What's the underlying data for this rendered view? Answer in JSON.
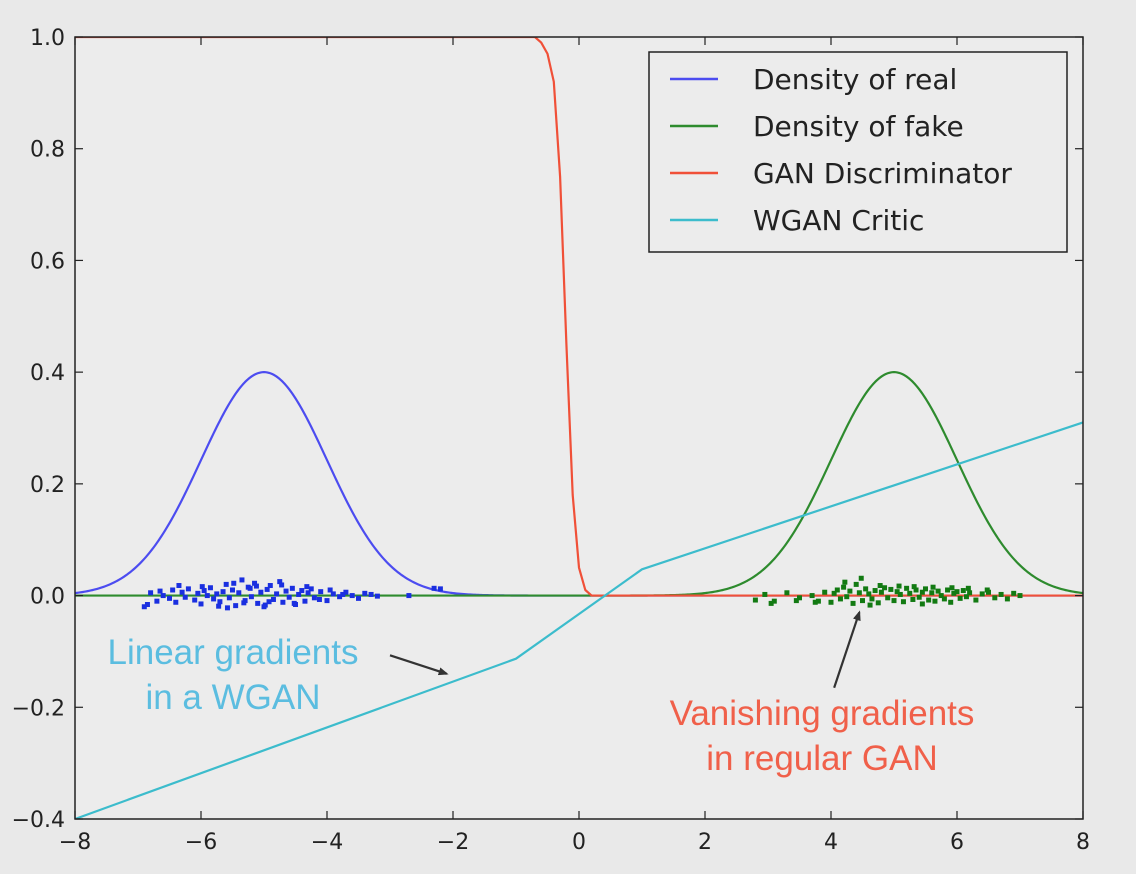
{
  "chart_data": {
    "type": "line",
    "title": "",
    "xlabel": "",
    "ylabel": "",
    "xlim": [
      -8,
      8
    ],
    "ylim": [
      -0.4,
      1.0
    ],
    "x_ticks": [
      -8,
      -6,
      -4,
      -2,
      0,
      2,
      4,
      6,
      8
    ],
    "x_tick_labels": [
      "−8",
      "−6",
      "−4",
      "−2",
      "0",
      "2",
      "4",
      "6",
      "8"
    ],
    "y_ticks": [
      -0.4,
      -0.2,
      0.0,
      0.2,
      0.4,
      0.6,
      0.8,
      1.0
    ],
    "y_tick_labels": [
      "−0.4",
      "−0.2",
      "0.0",
      "0.2",
      "0.4",
      "0.6",
      "0.8",
      "1.0"
    ],
    "grid": false,
    "legend": {
      "position": "top-right",
      "entries": [
        "Density of real",
        "Density of fake",
        "GAN Discriminator",
        "WGAN Critic"
      ]
    },
    "series": [
      {
        "name": "Density of real",
        "color": "#4c4cf0",
        "kind": "gaussian",
        "mean": -5,
        "std": 1,
        "peak": 0.4
      },
      {
        "name": "Density of fake",
        "color": "#2e8b2e",
        "kind": "gaussian",
        "mean": 5,
        "std": 1,
        "peak": 0.4
      },
      {
        "name": "GAN Discriminator",
        "color": "#f05038",
        "kind": "sigmoid",
        "x": [
          -8,
          -1.0,
          -0.7,
          -0.6,
          -0.5,
          -0.4,
          -0.3,
          -0.2,
          -0.1,
          0.0,
          0.1,
          0.2,
          8
        ],
        "y": [
          1.0,
          1.0,
          1.0,
          0.99,
          0.97,
          0.92,
          0.75,
          0.45,
          0.18,
          0.05,
          0.01,
          0.0,
          0.0
        ]
      },
      {
        "name": "WGAN Critic",
        "color": "#3cbccc",
        "kind": "piecewise-linear",
        "x": [
          -8,
          -1,
          1,
          8
        ],
        "y": [
          -0.4,
          -0.113,
          0.047,
          0.31
        ]
      }
    ],
    "samples": [
      {
        "name": "real samples",
        "color": "#1a2fe0",
        "x": [
          -6.9,
          -6.8,
          -6.7,
          -6.65,
          -6.6,
          -6.5,
          -6.45,
          -6.4,
          -6.3,
          -6.25,
          -6.2,
          -6.1,
          -6.05,
          -6.0,
          -5.95,
          -5.9,
          -5.85,
          -5.8,
          -5.75,
          -5.7,
          -5.65,
          -5.6,
          -5.55,
          -5.5,
          -5.45,
          -5.4,
          -5.35,
          -5.3,
          -5.25,
          -5.2,
          -5.15,
          -5.1,
          -5.05,
          -5.0,
          -4.95,
          -4.9,
          -4.85,
          -4.8,
          -4.75,
          -4.7,
          -4.65,
          -4.6,
          -4.55,
          -4.5,
          -4.45,
          -4.4,
          -4.35,
          -4.3,
          -4.25,
          -4.2,
          -4.1,
          -4.0,
          -3.9,
          -3.8,
          -3.7,
          -3.6,
          -3.5,
          -3.4,
          -3.3,
          -3.2,
          -2.7,
          -2.3,
          -2.2,
          -6.85,
          -6.35,
          -5.98,
          -5.72,
          -5.48,
          -5.32,
          -5.12,
          -4.92,
          -4.72,
          -4.52,
          -4.32,
          -4.12,
          -3.95,
          -3.75,
          -5.58,
          -5.22,
          -4.98
        ],
        "y": [
          -0.02,
          0.005,
          -0.01,
          0.008,
          0.0,
          -0.005,
          0.01,
          -0.012,
          0.006,
          -0.003,
          0.012,
          -0.008,
          0.004,
          -0.015,
          0.009,
          0.0,
          0.014,
          -0.006,
          0.003,
          -0.011,
          0.007,
          0.02,
          -0.004,
          0.01,
          -0.018,
          0.005,
          0.028,
          -0.009,
          0.015,
          -0.002,
          0.022,
          -0.014,
          0.006,
          -0.02,
          0.011,
          0.018,
          -0.007,
          0.003,
          0.025,
          -0.012,
          0.008,
          -0.003,
          0.013,
          -0.016,
          0.002,
          0.009,
          -0.01,
          0.005,
          0.012,
          -0.004,
          0.007,
          -0.009,
          0.003,
          -0.002,
          0.006,
          0.0,
          -0.005,
          0.004,
          0.002,
          -0.001,
          0.0,
          0.013,
          0.012,
          -0.016,
          0.018,
          0.016,
          -0.019,
          0.022,
          -0.013,
          0.017,
          -0.011,
          0.019,
          -0.014,
          0.016,
          -0.007,
          0.01,
          0.002,
          -0.022,
          0.013,
          -0.017
        ]
      },
      {
        "name": "fake samples",
        "color": "#127a12",
        "x": [
          2.8,
          2.95,
          3.1,
          3.3,
          3.5,
          3.7,
          3.8,
          3.9,
          4.0,
          4.05,
          4.1,
          4.15,
          4.2,
          4.25,
          4.3,
          4.35,
          4.4,
          4.45,
          4.5,
          4.55,
          4.6,
          4.65,
          4.7,
          4.75,
          4.8,
          4.85,
          4.9,
          4.95,
          5.0,
          5.05,
          5.1,
          5.15,
          5.2,
          5.25,
          5.3,
          5.35,
          5.4,
          5.45,
          5.5,
          5.55,
          5.6,
          5.65,
          5.7,
          5.75,
          5.8,
          5.85,
          5.9,
          5.95,
          6.0,
          6.05,
          6.1,
          6.15,
          6.2,
          6.3,
          6.4,
          6.5,
          6.6,
          6.7,
          6.8,
          6.9,
          7.0,
          3.05,
          3.45,
          3.75,
          4.22,
          4.48,
          4.78,
          5.08,
          5.32,
          5.62,
          5.92,
          6.18,
          6.48,
          4.62,
          5.45
        ],
        "y": [
          -0.008,
          0.002,
          -0.01,
          0.005,
          -0.004,
          0.0,
          -0.01,
          0.006,
          -0.012,
          0.004,
          0.01,
          -0.006,
          0.015,
          -0.002,
          0.008,
          -0.014,
          0.02,
          0.005,
          -0.009,
          0.012,
          0.003,
          -0.006,
          0.009,
          -0.013,
          0.006,
          0.014,
          -0.004,
          0.011,
          -0.009,
          0.007,
          0.002,
          -0.011,
          0.013,
          0.004,
          -0.007,
          0.01,
          -0.003,
          0.006,
          0.012,
          -0.008,
          0.005,
          -0.01,
          0.008,
          0.0,
          -0.006,
          0.01,
          -0.012,
          0.004,
          0.007,
          -0.005,
          0.009,
          -0.002,
          0.005,
          -0.008,
          0.003,
          0.006,
          -0.004,
          0.002,
          -0.006,
          0.004,
          0.0,
          -0.014,
          -0.009,
          -0.012,
          0.024,
          0.031,
          0.018,
          0.017,
          0.016,
          0.015,
          0.014,
          0.013,
          0.01,
          -0.017,
          -0.015
        ]
      }
    ],
    "annotations": [
      {
        "id": "linear",
        "lines": [
          "Linear gradients",
          "in a WGAN"
        ],
        "color": "#5bbde0",
        "arrow_to": [
          -2.1,
          -0.14
        ],
        "arrow_from": [
          -3.0,
          -0.107
        ]
      },
      {
        "id": "vanishing",
        "lines": [
          "Vanishing gradients",
          "in regular GAN"
        ],
        "color": "#f0604a",
        "arrow_to": [
          4.45,
          -0.03
        ],
        "arrow_from": [
          4.05,
          -0.165
        ]
      }
    ]
  }
}
